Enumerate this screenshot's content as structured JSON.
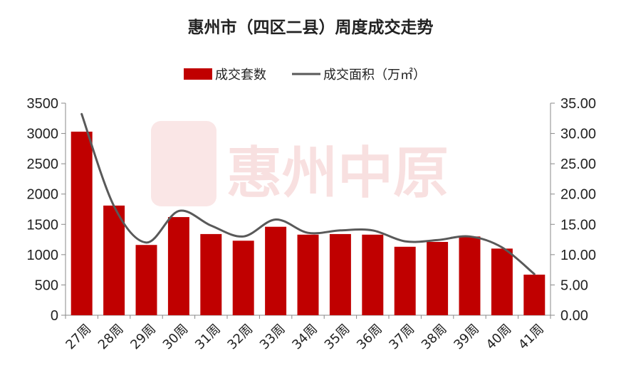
{
  "chart_data": {
    "type": "bar",
    "title": "惠州市（四区二县）周度成交走势",
    "categories": [
      "27周",
      "28周",
      "29周",
      "30周",
      "31周",
      "32周",
      "33周",
      "34周",
      "35周",
      "36周",
      "37周",
      "38周",
      "39周",
      "40周",
      "41周"
    ],
    "series": [
      {
        "name": "成交套数",
        "type": "bar",
        "axis": "left",
        "values": [
          3030,
          1810,
          1160,
          1620,
          1340,
          1230,
          1460,
          1330,
          1340,
          1330,
          1130,
          1210,
          1300,
          1100,
          670
        ]
      },
      {
        "name": "成交面积（万㎡）",
        "type": "line",
        "axis": "right",
        "values": [
          33.2,
          18.0,
          12.0,
          17.2,
          14.8,
          13.0,
          15.8,
          13.6,
          14.0,
          14.0,
          12.2,
          12.4,
          13.0,
          11.2,
          6.8
        ]
      }
    ],
    "y_left": {
      "min": 0,
      "max": 3500,
      "step": 500,
      "ticks": [
        "0",
        "500",
        "1000",
        "1500",
        "2000",
        "2500",
        "3000",
        "3500"
      ]
    },
    "y_right": {
      "min": 0,
      "max": 35,
      "step": 5,
      "ticks": [
        "0.00",
        "5.00",
        "10.00",
        "15.00",
        "20.00",
        "25.00",
        "30.00",
        "35.00"
      ]
    },
    "legend_position": "top-center",
    "grid": false,
    "colors": {
      "bar": "#c00000",
      "line": "#595959",
      "watermark": "#f4c7c7"
    },
    "watermark_text": "惠州中原"
  }
}
